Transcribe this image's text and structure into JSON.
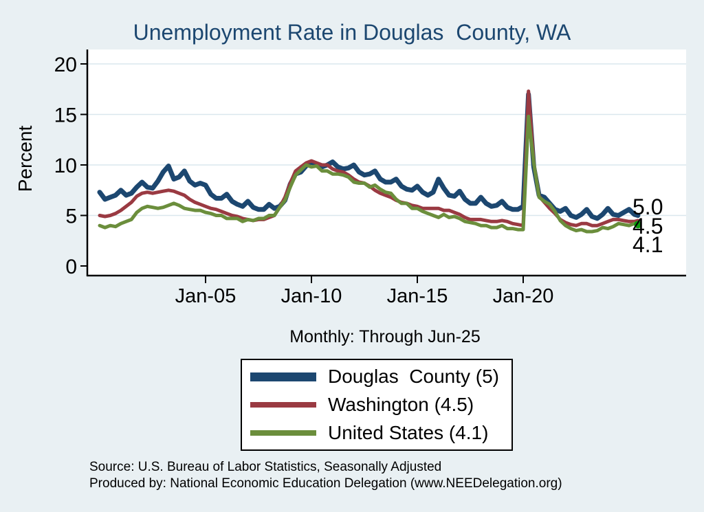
{
  "page": {
    "background": "#e9f0f3"
  },
  "header": {
    "title": "Unemployment Rate in Douglas  County, WA",
    "title_color": "#1c4770"
  },
  "chart_data": {
    "type": "line",
    "title": "Unemployment Rate in Douglas  County, WA",
    "subtitle": "Monthly: Through Jun-25",
    "xlabel": "",
    "ylabel": "Percent",
    "ylim": [
      0,
      20
    ],
    "y_ticks": [
      "0",
      "5",
      "10",
      "15",
      "20"
    ],
    "x_ticks": [
      {
        "label": "Jan-05",
        "year": 2005
      },
      {
        "label": "Jan-10",
        "year": 2010
      },
      {
        "label": "Jan-15",
        "year": 2015
      },
      {
        "label": "Jan-20",
        "year": 2020
      }
    ],
    "grid": "horizontal",
    "grid_color": "#dae7ee",
    "plot_background": "#ffffff",
    "legend_position": "bottom",
    "end_labels": [
      "5.0",
      "4.5",
      "4.1"
    ],
    "end_marker_color": "#0c9b0c",
    "x": [
      2000.0,
      2000.25,
      2000.5,
      2000.75,
      2001.0,
      2001.25,
      2001.5,
      2001.75,
      2002.0,
      2002.25,
      2002.5,
      2002.75,
      2003.0,
      2003.25,
      2003.5,
      2003.75,
      2004.0,
      2004.25,
      2004.5,
      2004.75,
      2005.0,
      2005.25,
      2005.5,
      2005.75,
      2006.0,
      2006.25,
      2006.5,
      2006.75,
      2007.0,
      2007.25,
      2007.5,
      2007.75,
      2008.0,
      2008.25,
      2008.5,
      2008.75,
      2009.0,
      2009.25,
      2009.5,
      2009.75,
      2010.0,
      2010.25,
      2010.5,
      2010.75,
      2011.0,
      2011.25,
      2011.5,
      2011.75,
      2012.0,
      2012.25,
      2012.5,
      2012.75,
      2013.0,
      2013.25,
      2013.5,
      2013.75,
      2014.0,
      2014.25,
      2014.5,
      2014.75,
      2015.0,
      2015.25,
      2015.5,
      2015.75,
      2016.0,
      2016.25,
      2016.5,
      2016.75,
      2017.0,
      2017.25,
      2017.5,
      2017.75,
      2018.0,
      2018.25,
      2018.5,
      2018.75,
      2019.0,
      2019.25,
      2019.5,
      2019.75,
      2020.0,
      2020.25,
      2020.5,
      2020.75,
      2021.0,
      2021.25,
      2021.5,
      2021.75,
      2022.0,
      2022.25,
      2022.5,
      2022.75,
      2023.0,
      2023.25,
      2023.5,
      2023.75,
      2024.0,
      2024.25,
      2024.5,
      2024.75,
      2025.0,
      2025.25,
      2025.42
    ],
    "series": [
      {
        "id": "douglas-county",
        "name": "Douglas  County (5)",
        "latest_value": 5.0,
        "color": "#1c4770",
        "line_width": 7,
        "values": [
          7.3,
          6.6,
          6.8,
          7.0,
          7.5,
          7.0,
          7.2,
          7.8,
          8.3,
          7.8,
          7.7,
          8.4,
          9.3,
          9.9,
          8.6,
          8.8,
          9.4,
          8.4,
          8.0,
          8.2,
          8.0,
          7.1,
          6.7,
          6.7,
          7.1,
          6.4,
          6.1,
          5.9,
          6.4,
          5.8,
          5.6,
          5.6,
          6.1,
          5.7,
          5.9,
          6.5,
          8.1,
          9.1,
          9.3,
          9.9,
          10.3,
          10.0,
          9.8,
          10.0,
          10.3,
          9.8,
          9.6,
          9.7,
          10.0,
          9.3,
          9.0,
          9.1,
          9.4,
          8.6,
          8.3,
          8.3,
          8.6,
          7.9,
          7.6,
          7.5,
          7.9,
          7.3,
          7.0,
          7.3,
          8.6,
          7.7,
          7.0,
          6.9,
          7.4,
          6.6,
          6.2,
          6.2,
          6.8,
          6.2,
          5.9,
          6.0,
          6.4,
          5.8,
          5.6,
          5.6,
          5.9,
          17.0,
          9.8,
          7.0,
          6.8,
          6.2,
          5.6,
          5.4,
          5.7,
          5.0,
          4.8,
          5.1,
          5.6,
          4.9,
          4.7,
          5.1,
          5.7,
          5.1,
          5.0,
          5.3,
          5.6,
          5.1,
          5.0
        ]
      },
      {
        "id": "washington",
        "name": "Washington (4.5)",
        "latest_value": 4.5,
        "color": "#9a3a42",
        "line_width": 5,
        "values": [
          5.0,
          4.9,
          5.0,
          5.2,
          5.5,
          5.9,
          6.3,
          6.9,
          7.2,
          7.3,
          7.2,
          7.3,
          7.4,
          7.5,
          7.4,
          7.2,
          7.0,
          6.6,
          6.3,
          6.1,
          5.9,
          5.7,
          5.6,
          5.4,
          5.2,
          5.0,
          4.9,
          4.7,
          4.6,
          4.5,
          4.6,
          4.6,
          4.8,
          5.0,
          5.8,
          6.8,
          8.2,
          9.4,
          9.8,
          10.2,
          10.4,
          10.2,
          10.0,
          10.0,
          9.6,
          9.4,
          9.3,
          9.0,
          8.6,
          8.3,
          8.2,
          7.9,
          7.5,
          7.2,
          7.0,
          6.8,
          6.5,
          6.3,
          6.2,
          6.0,
          5.9,
          5.7,
          5.7,
          5.7,
          5.7,
          5.5,
          5.5,
          5.3,
          5.1,
          4.8,
          4.6,
          4.6,
          4.6,
          4.5,
          4.4,
          4.4,
          4.5,
          4.4,
          4.2,
          4.1,
          4.0,
          17.3,
          10.2,
          6.9,
          6.3,
          5.7,
          5.2,
          4.6,
          4.3,
          4.1,
          4.0,
          4.2,
          4.2,
          4.0,
          4.0,
          4.2,
          4.4,
          4.6,
          4.6,
          4.5,
          4.4,
          4.4,
          4.5
        ]
      },
      {
        "id": "united-states",
        "name": "United States (4.1)",
        "latest_value": 4.1,
        "color": "#6b8e3c",
        "line_width": 5,
        "values": [
          4.0,
          3.8,
          4.0,
          3.9,
          4.2,
          4.4,
          4.6,
          5.3,
          5.7,
          5.9,
          5.8,
          5.7,
          5.8,
          6.0,
          6.2,
          6.0,
          5.7,
          5.6,
          5.5,
          5.5,
          5.3,
          5.2,
          5.0,
          5.0,
          4.7,
          4.7,
          4.7,
          4.4,
          4.6,
          4.5,
          4.7,
          4.7,
          5.0,
          5.0,
          5.8,
          6.5,
          7.8,
          9.0,
          9.5,
          10.0,
          9.8,
          9.9,
          9.4,
          9.4,
          9.1,
          9.1,
          9.0,
          8.8,
          8.3,
          8.2,
          8.2,
          7.8,
          8.0,
          7.6,
          7.3,
          7.2,
          6.6,
          6.2,
          6.2,
          5.7,
          5.7,
          5.4,
          5.2,
          5.0,
          4.8,
          5.1,
          4.8,
          4.9,
          4.7,
          4.4,
          4.3,
          4.2,
          4.0,
          4.0,
          3.8,
          3.8,
          4.0,
          3.7,
          3.7,
          3.6,
          3.6,
          14.8,
          10.2,
          6.8,
          6.4,
          6.1,
          5.4,
          4.5,
          4.0,
          3.7,
          3.5,
          3.6,
          3.4,
          3.4,
          3.5,
          3.8,
          3.7,
          3.9,
          4.2,
          4.1,
          4.0,
          4.2,
          4.1
        ]
      }
    ]
  },
  "footer": {
    "source_line1": "Source: U.S. Bureau of Labor Statistics, Seasonally Adjusted",
    "source_line2": "Produced by: National Economic Education Delegation (www.NEEDelegation.org)"
  }
}
